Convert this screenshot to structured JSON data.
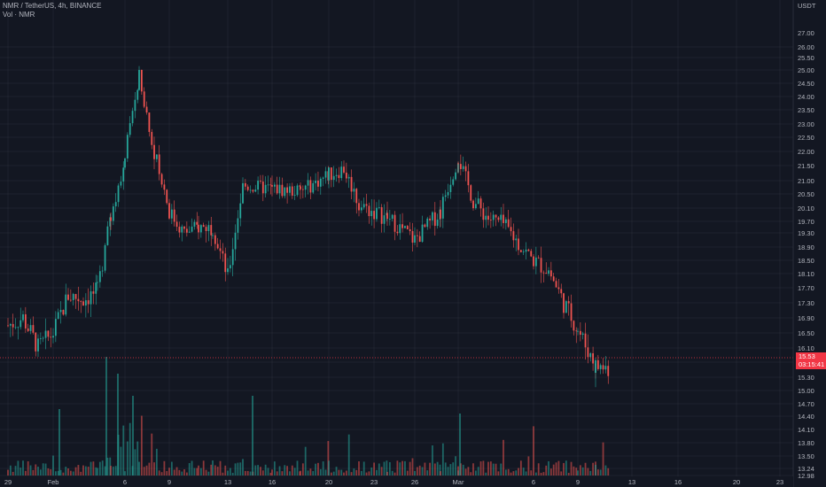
{
  "legend": {
    "symbol_line": "NMR / TetherUS, 4h, BINANCE",
    "volume_line": "Vol · NMR"
  },
  "price_axis": {
    "currency": "USDT",
    "labels": [
      "27.00",
      "26.00",
      "25.50",
      "25.00",
      "24.50",
      "24.00",
      "23.50",
      "23.00",
      "22.50",
      "22.00",
      "21.50",
      "21.00",
      "20.50",
      "20.10",
      "19.70",
      "19.30",
      "18.90",
      "18.50",
      "18.10",
      "17.70",
      "17.30",
      "16.90",
      "16.50",
      "16.10",
      "15.70",
      "15.30",
      "15.00",
      "14.70",
      "14.40",
      "14.10",
      "13.80",
      "13.50",
      "13.24",
      "12.98"
    ]
  },
  "time_axis": {
    "labels": [
      "29",
      "Feb",
      "6",
      "9",
      "13",
      "16",
      "20",
      "23",
      "26",
      "Mar",
      "6",
      "9",
      "13",
      "16",
      "20",
      "23"
    ]
  },
  "current_price": {
    "price": "15.53",
    "countdown": "03:15:41"
  },
  "colors": {
    "background": "#131722",
    "grid": "#2a2e39",
    "up": "#26a69a",
    "down": "#ef5350",
    "current_price": "#f23645",
    "text": "#b2b5be"
  },
  "chart_data": {
    "type": "candlestick",
    "interval": "4h",
    "y_axis": "price (USDT)",
    "anchor_points": [
      {
        "t": "Jan 29",
        "close": 16.7
      },
      {
        "t": "Jan 30",
        "close": 16.9
      },
      {
        "t": "Jan 31",
        "close": 16.1
      },
      {
        "t": "Feb 1",
        "close": 16.5
      },
      {
        "t": "Feb 2",
        "close": 17.5
      },
      {
        "t": "Feb 3",
        "close": 17.4
      },
      {
        "t": "Feb 4",
        "close": 17.6
      },
      {
        "t": "Feb 5",
        "close": 19.8
      },
      {
        "t": "Feb 6",
        "close": 21.8
      },
      {
        "t": "Feb 7",
        "close": 24.8
      },
      {
        "t": "Feb 8",
        "close": 22.0
      },
      {
        "t": "Feb 9",
        "close": 20.0
      },
      {
        "t": "Feb 10",
        "close": 19.3
      },
      {
        "t": "Feb 11",
        "close": 19.5
      },
      {
        "t": "Feb 12",
        "close": 19.5
      },
      {
        "t": "Feb 13",
        "close": 18.0
      },
      {
        "t": "Feb 14",
        "close": 20.8
      },
      {
        "t": "Feb 16",
        "close": 20.7
      },
      {
        "t": "Feb 18",
        "close": 20.6
      },
      {
        "t": "Feb 20",
        "close": 21.2
      },
      {
        "t": "Feb 21",
        "close": 21.4
      },
      {
        "t": "Feb 22",
        "close": 20.2
      },
      {
        "t": "Feb 24",
        "close": 19.8
      },
      {
        "t": "Feb 26",
        "close": 19.1
      },
      {
        "t": "Feb 28",
        "close": 20.0
      },
      {
        "t": "Mar 1",
        "close": 21.8
      },
      {
        "t": "Mar 2",
        "close": 20.3
      },
      {
        "t": "Mar 3",
        "close": 19.8
      },
      {
        "t": "Mar 4",
        "close": 19.6
      },
      {
        "t": "Mar 5",
        "close": 19.0
      },
      {
        "t": "Mar 6",
        "close": 18.5
      },
      {
        "t": "Mar 7",
        "close": 18.2
      },
      {
        "t": "Mar 8",
        "close": 17.3
      },
      {
        "t": "Mar 9",
        "close": 16.6
      },
      {
        "t": "Mar 10",
        "close": 15.6
      },
      {
        "t": "Mar 10 (last)",
        "close": 15.53
      }
    ]
  }
}
